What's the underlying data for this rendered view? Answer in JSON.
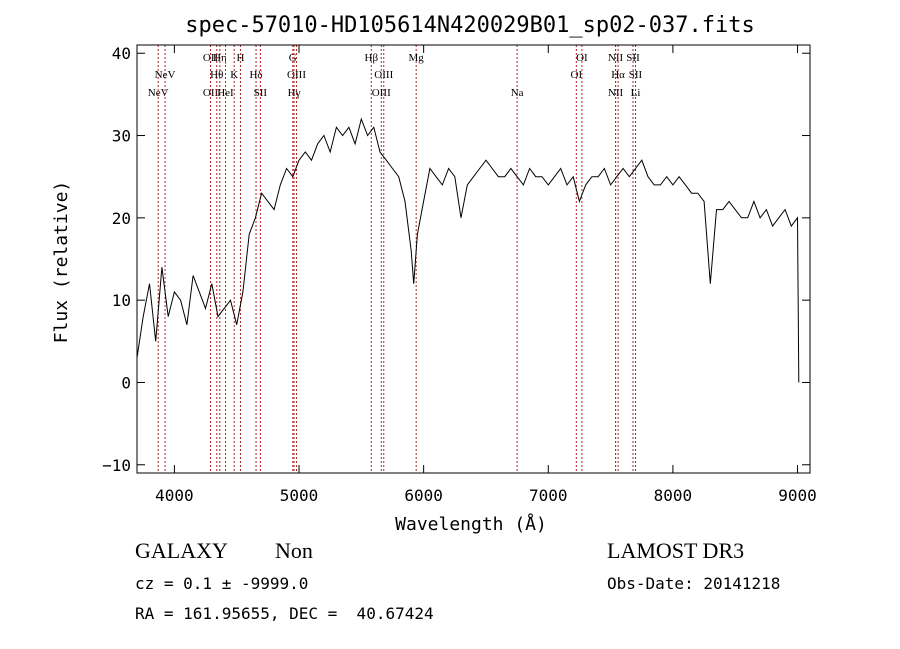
{
  "title": "spec-57010-HD105614N420029B01_sp02-037.fits",
  "footer": {
    "object_class": "GALAXY",
    "subclass": "Non",
    "survey": "LAMOST DR3",
    "cz_text": "cz = 0.1 ± -9999.0",
    "obs_date_text": "Obs-Date: 20141218",
    "radec_text": "RA = 161.95655, DEC =  40.67424"
  },
  "chart_data": {
    "type": "line",
    "xlabel": "Wavelength (Å)",
    "ylabel": "Flux (relative)",
    "xlim": [
      3700,
      9100
    ],
    "ylim": [
      -11,
      41
    ],
    "xticks": [
      4000,
      5000,
      6000,
      7000,
      8000,
      9000
    ],
    "yticks": [
      -10,
      0,
      10,
      20,
      30,
      40
    ],
    "series": [
      {
        "x": [
          3700,
          3750,
          3800,
          3850,
          3900,
          3950,
          4000,
          4050,
          4100,
          4150,
          4200,
          4250,
          4300,
          4350,
          4400,
          4450,
          4500,
          4550,
          4600,
          4650,
          4700,
          4750,
          4800,
          4850,
          4900,
          4950,
          5000,
          5050,
          5100,
          5150,
          5200,
          5250,
          5300,
          5350,
          5400,
          5450,
          5500,
          5550,
          5600,
          5650,
          5700,
          5750,
          5800,
          5850,
          5900,
          5920,
          5950,
          6000,
          6050,
          6100,
          6150,
          6200,
          6250,
          6300,
          6350,
          6400,
          6450,
          6500,
          6550,
          6600,
          6650,
          6700,
          6750,
          6800,
          6850,
          6900,
          6950,
          7000,
          7050,
          7100,
          7150,
          7200,
          7250,
          7300,
          7350,
          7400,
          7450,
          7500,
          7550,
          7600,
          7650,
          7700,
          7750,
          7800,
          7850,
          7900,
          7950,
          8000,
          8050,
          8100,
          8150,
          8200,
          8250,
          8300,
          8350,
          8400,
          8450,
          8500,
          8550,
          8600,
          8650,
          8700,
          8750,
          8800,
          8850,
          8900,
          8950,
          9000,
          9010
        ],
        "y": [
          3,
          8,
          12,
          5,
          14,
          8,
          11,
          10,
          7,
          13,
          11,
          9,
          12,
          8,
          9,
          10,
          7,
          11,
          18,
          20,
          23,
          22,
          21,
          24,
          26,
          25,
          27,
          28,
          27,
          29,
          30,
          28,
          31,
          30,
          31,
          29,
          32,
          30,
          31,
          28,
          27,
          26,
          25,
          22,
          16,
          12,
          18,
          22,
          26,
          25,
          24,
          26,
          25,
          20,
          24,
          25,
          26,
          27,
          26,
          25,
          25,
          26,
          25,
          24,
          26,
          25,
          25,
          24,
          25,
          26,
          24,
          25,
          22,
          24,
          25,
          25,
          26,
          24,
          25,
          26,
          25,
          26,
          27,
          25,
          24,
          24,
          25,
          24,
          25,
          24,
          23,
          23,
          22,
          12,
          21,
          21,
          22,
          21,
          20,
          20,
          22,
          20,
          21,
          19,
          20,
          21,
          19,
          20,
          0
        ]
      }
    ],
    "line_markers": [
      {
        "label": "NeV",
        "x": 3870,
        "row": 2
      },
      {
        "label": "NeV",
        "x": 3925,
        "row": 1
      },
      {
        "label": "OII",
        "x": 4290,
        "row": 0
      },
      {
        "label": "OII",
        "x": 4290,
        "row": 2
      },
      {
        "label": "Hη",
        "x": 4365,
        "row": 0
      },
      {
        "label": "Hθ",
        "x": 4340,
        "row": 1
      },
      {
        "label": "HeI",
        "x": 4410,
        "row": 2
      },
      {
        "label": "H",
        "x": 4530,
        "row": 0
      },
      {
        "label": "K",
        "x": 4480,
        "row": 1
      },
      {
        "label": "Hδ",
        "x": 4655,
        "row": 1
      },
      {
        "label": "SII",
        "x": 4690,
        "row": 2
      },
      {
        "label": "G",
        "x": 4950,
        "row": 0
      },
      {
        "label": "OIII",
        "x": 4980,
        "row": 1
      },
      {
        "label": "Hγ",
        "x": 4960,
        "row": 2
      },
      {
        "label": "Hβ",
        "x": 5580,
        "row": 0
      },
      {
        "label": "OIII",
        "x": 5680,
        "row": 1
      },
      {
        "label": "OIII",
        "x": 5660,
        "row": 2
      },
      {
        "label": "Mg",
        "x": 5940,
        "row": 0
      },
      {
        "label": "Na",
        "x": 6750,
        "row": 2
      },
      {
        "label": "OI",
        "x": 7270,
        "row": 0
      },
      {
        "label": "OI",
        "x": 7225,
        "row": 1
      },
      {
        "label": "NII",
        "x": 7540,
        "row": 0
      },
      {
        "label": "Hα",
        "x": 7560,
        "row": 1
      },
      {
        "label": "NII",
        "x": 7540,
        "row": 2
      },
      {
        "label": "SII",
        "x": 7680,
        "row": 0
      },
      {
        "label": "SII",
        "x": 7700,
        "row": 1
      },
      {
        "label": "Li",
        "x": 7700,
        "row": 2
      }
    ]
  }
}
